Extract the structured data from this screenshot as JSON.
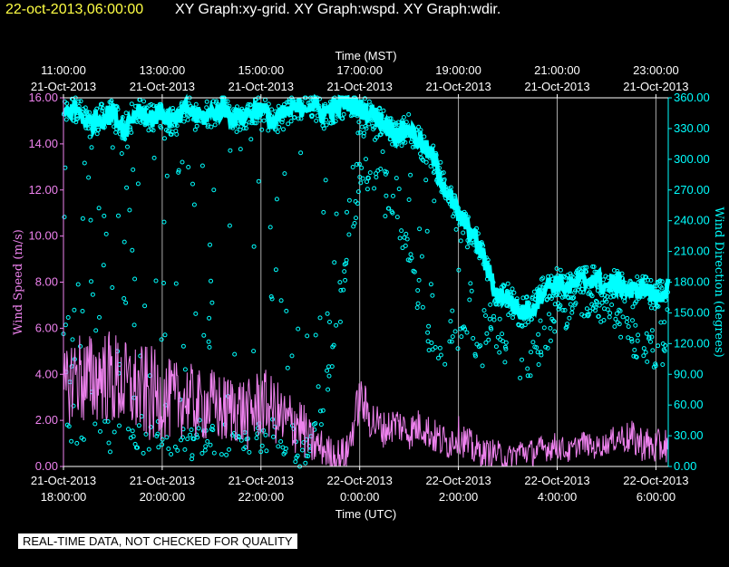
{
  "header": {
    "timestamp": "22-oct-2013,06:00:00",
    "titles": "XY Graph:xy-grid.  XY Graph:wspd.  XY Graph:wdir."
  },
  "disclaimer": "REAL-TIME DATA, NOT CHECKED FOR QUALITY",
  "chart_data": {
    "type": "line",
    "grid": true,
    "top_axis": {
      "label": "Time (MST)",
      "ticks": [
        {
          "time": "11:00:00",
          "date": "21-Oct-2013"
        },
        {
          "time": "13:00:00",
          "date": "21-Oct-2013"
        },
        {
          "time": "15:00:00",
          "date": "21-Oct-2013"
        },
        {
          "time": "17:00:00",
          "date": "21-Oct-2013"
        },
        {
          "time": "19:00:00",
          "date": "21-Oct-2013"
        },
        {
          "time": "21:00:00",
          "date": "21-Oct-2013"
        },
        {
          "time": "23:00:00",
          "date": "21-Oct-2013"
        }
      ]
    },
    "bottom_axis": {
      "label": "Time (UTC)",
      "ticks": [
        {
          "date": "21-Oct-2013",
          "time": "18:00:00"
        },
        {
          "date": "21-Oct-2013",
          "time": "20:00:00"
        },
        {
          "date": "21-Oct-2013",
          "time": "22:00:00"
        },
        {
          "date": "22-Oct-2013",
          "time": "0:00:00"
        },
        {
          "date": "22-Oct-2013",
          "time": "2:00:00"
        },
        {
          "date": "22-Oct-2013",
          "time": "4:00:00"
        },
        {
          "date": "22-Oct-2013",
          "time": "6:00:00"
        }
      ],
      "xlim_utc": [
        "2013-10-21T18:00",
        "2013-10-22T06:15"
      ]
    },
    "left_axis": {
      "label": "Wind Speed (m/s)",
      "ylim": [
        0,
        16
      ],
      "ticks": [
        "0.00",
        "2.00",
        "4.00",
        "6.00",
        "8.00",
        "10.00",
        "12.00",
        "14.00",
        "16.00"
      ]
    },
    "right_axis": {
      "label": "Wind Direction (degrees)",
      "ylim": [
        0,
        360
      ],
      "ticks": [
        "0.00",
        "30.00",
        "60.00",
        "90.00",
        "120.00",
        "150.00",
        "180.00",
        "210.00",
        "240.00",
        "270.00",
        "300.00",
        "330.00",
        "360.00"
      ]
    },
    "colors": {
      "wspd": "#ee82ee",
      "wdir": "#00ffff",
      "grid": "#aaaaaa",
      "text": "#ffffff"
    },
    "series": [
      {
        "key": "wspd",
        "axis": "left",
        "x_hours_from_start": [
          0.0,
          0.25,
          0.5,
          0.75,
          1.0,
          1.25,
          1.5,
          1.75,
          2.0,
          2.25,
          2.5,
          2.75,
          3.0,
          3.25,
          3.5,
          3.75,
          4.0,
          4.25,
          4.5,
          4.75,
          5.0,
          5.25,
          5.5,
          5.75,
          6.0,
          6.25,
          6.5,
          6.75,
          7.0,
          7.25,
          7.5,
          7.75,
          8.0,
          8.25,
          8.5,
          8.75,
          9.0,
          9.25,
          9.5,
          9.75,
          10.0,
          10.25,
          10.5,
          10.75,
          11.0,
          11.25,
          11.5,
          11.75,
          12.0,
          12.25
        ],
        "values": [
          3.2,
          4.1,
          3.6,
          4.0,
          3.8,
          3.5,
          3.3,
          3.1,
          3.0,
          2.8,
          3.0,
          2.6,
          2.7,
          2.4,
          2.6,
          2.2,
          2.8,
          2.5,
          1.8,
          2.0,
          1.0,
          0.8,
          0.4,
          0.6,
          3.0,
          2.0,
          1.6,
          1.9,
          1.5,
          1.8,
          1.3,
          1.0,
          1.4,
          0.8,
          0.6,
          0.6,
          0.3,
          0.7,
          0.6,
          0.8,
          0.9,
          0.6,
          1.1,
          0.8,
          1.0,
          1.3,
          1.2,
          1.0,
          0.8,
          1.0
        ],
        "spread": [
          1.6,
          2.0,
          2.2,
          2.0,
          2.2,
          2.0,
          2.0,
          2.2,
          1.8,
          1.8,
          1.6,
          1.6,
          1.6,
          1.6,
          1.6,
          1.6,
          1.6,
          1.4,
          1.6,
          1.4,
          1.0,
          0.8,
          0.8,
          0.8,
          1.0,
          1.0,
          0.8,
          0.8,
          0.8,
          0.8,
          0.8,
          0.8,
          0.8,
          0.8,
          0.6,
          0.6,
          0.6,
          0.6,
          0.6,
          0.6,
          0.6,
          0.5,
          0.5,
          0.5,
          0.5,
          0.6,
          0.8,
          0.8,
          0.8,
          0.8
        ]
      },
      {
        "key": "wdir",
        "axis": "right",
        "x_hours_from_start": [
          0.0,
          0.25,
          0.5,
          0.75,
          1.0,
          1.25,
          1.5,
          1.75,
          2.0,
          2.25,
          2.5,
          2.75,
          3.0,
          3.25,
          3.5,
          3.75,
          4.0,
          4.25,
          4.5,
          4.75,
          5.0,
          5.25,
          5.5,
          5.75,
          6.0,
          6.25,
          6.5,
          6.75,
          7.0,
          7.25,
          7.5,
          7.75,
          8.0,
          8.25,
          8.5,
          8.75,
          9.0,
          9.25,
          9.5,
          9.75,
          10.0,
          10.25,
          10.5,
          10.75,
          11.0,
          11.25,
          11.5,
          11.75,
          12.0,
          12.25
        ],
        "values": [
          345,
          350,
          335,
          340,
          345,
          330,
          350,
          340,
          345,
          335,
          350,
          340,
          345,
          350,
          340,
          345,
          350,
          335,
          345,
          350,
          355,
          345,
          350,
          355,
          350,
          345,
          335,
          325,
          330,
          315,
          300,
          270,
          245,
          230,
          205,
          170,
          165,
          150,
          155,
          175,
          180,
          175,
          180,
          185,
          175,
          180,
          170,
          175,
          165,
          175
        ],
        "low_excursions": [
          35,
          20,
          30,
          40,
          25,
          35,
          20,
          30,
          30,
          25,
          20,
          25,
          30,
          20,
          35,
          20,
          25,
          30,
          15,
          10,
          20,
          60,
          120,
          200,
          280,
          280,
          260,
          250,
          200,
          150,
          110,
          100,
          130,
          120,
          110,
          130,
          110,
          95,
          100,
          120,
          150,
          150,
          150,
          160,
          150,
          140,
          120,
          120,
          110,
          110
        ]
      }
    ]
  }
}
